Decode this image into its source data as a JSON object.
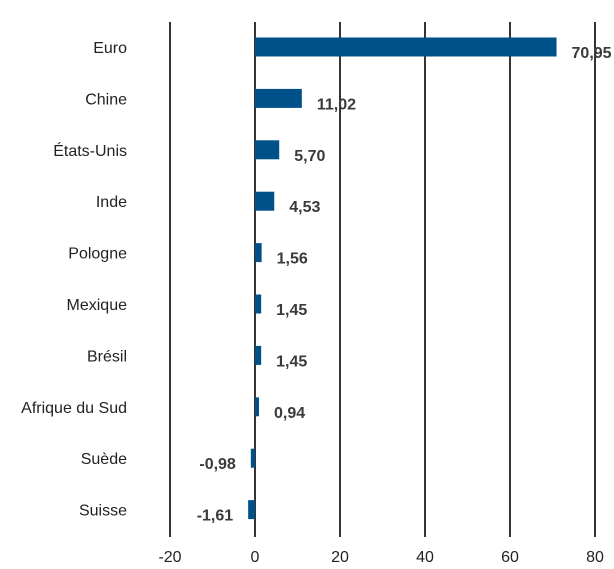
{
  "chart_data": {
    "type": "bar",
    "orientation": "horizontal",
    "categories": [
      "Euro",
      "Chine",
      "États-Unis",
      "Inde",
      "Pologne",
      "Mexique",
      "Brésil",
      "Afrique du Sud",
      "Suède",
      "Suisse"
    ],
    "values": [
      70.95,
      11.02,
      5.7,
      4.53,
      1.56,
      1.45,
      1.45,
      0.94,
      -0.98,
      -1.61
    ],
    "value_labels": [
      "70,95",
      "11,02",
      "5,70",
      "4,53",
      "1,56",
      "1,45",
      "1,45",
      "0,94",
      "-0,98",
      "-1,61"
    ],
    "xlim": [
      -20,
      80
    ],
    "xticks": [
      -20,
      0,
      20,
      40,
      60,
      80
    ],
    "xtick_labels": [
      "-20",
      "0",
      "20",
      "40",
      "60",
      "80"
    ],
    "grid": true,
    "bar_color": "#00508a",
    "title": "",
    "xlabel": "",
    "ylabel": ""
  }
}
